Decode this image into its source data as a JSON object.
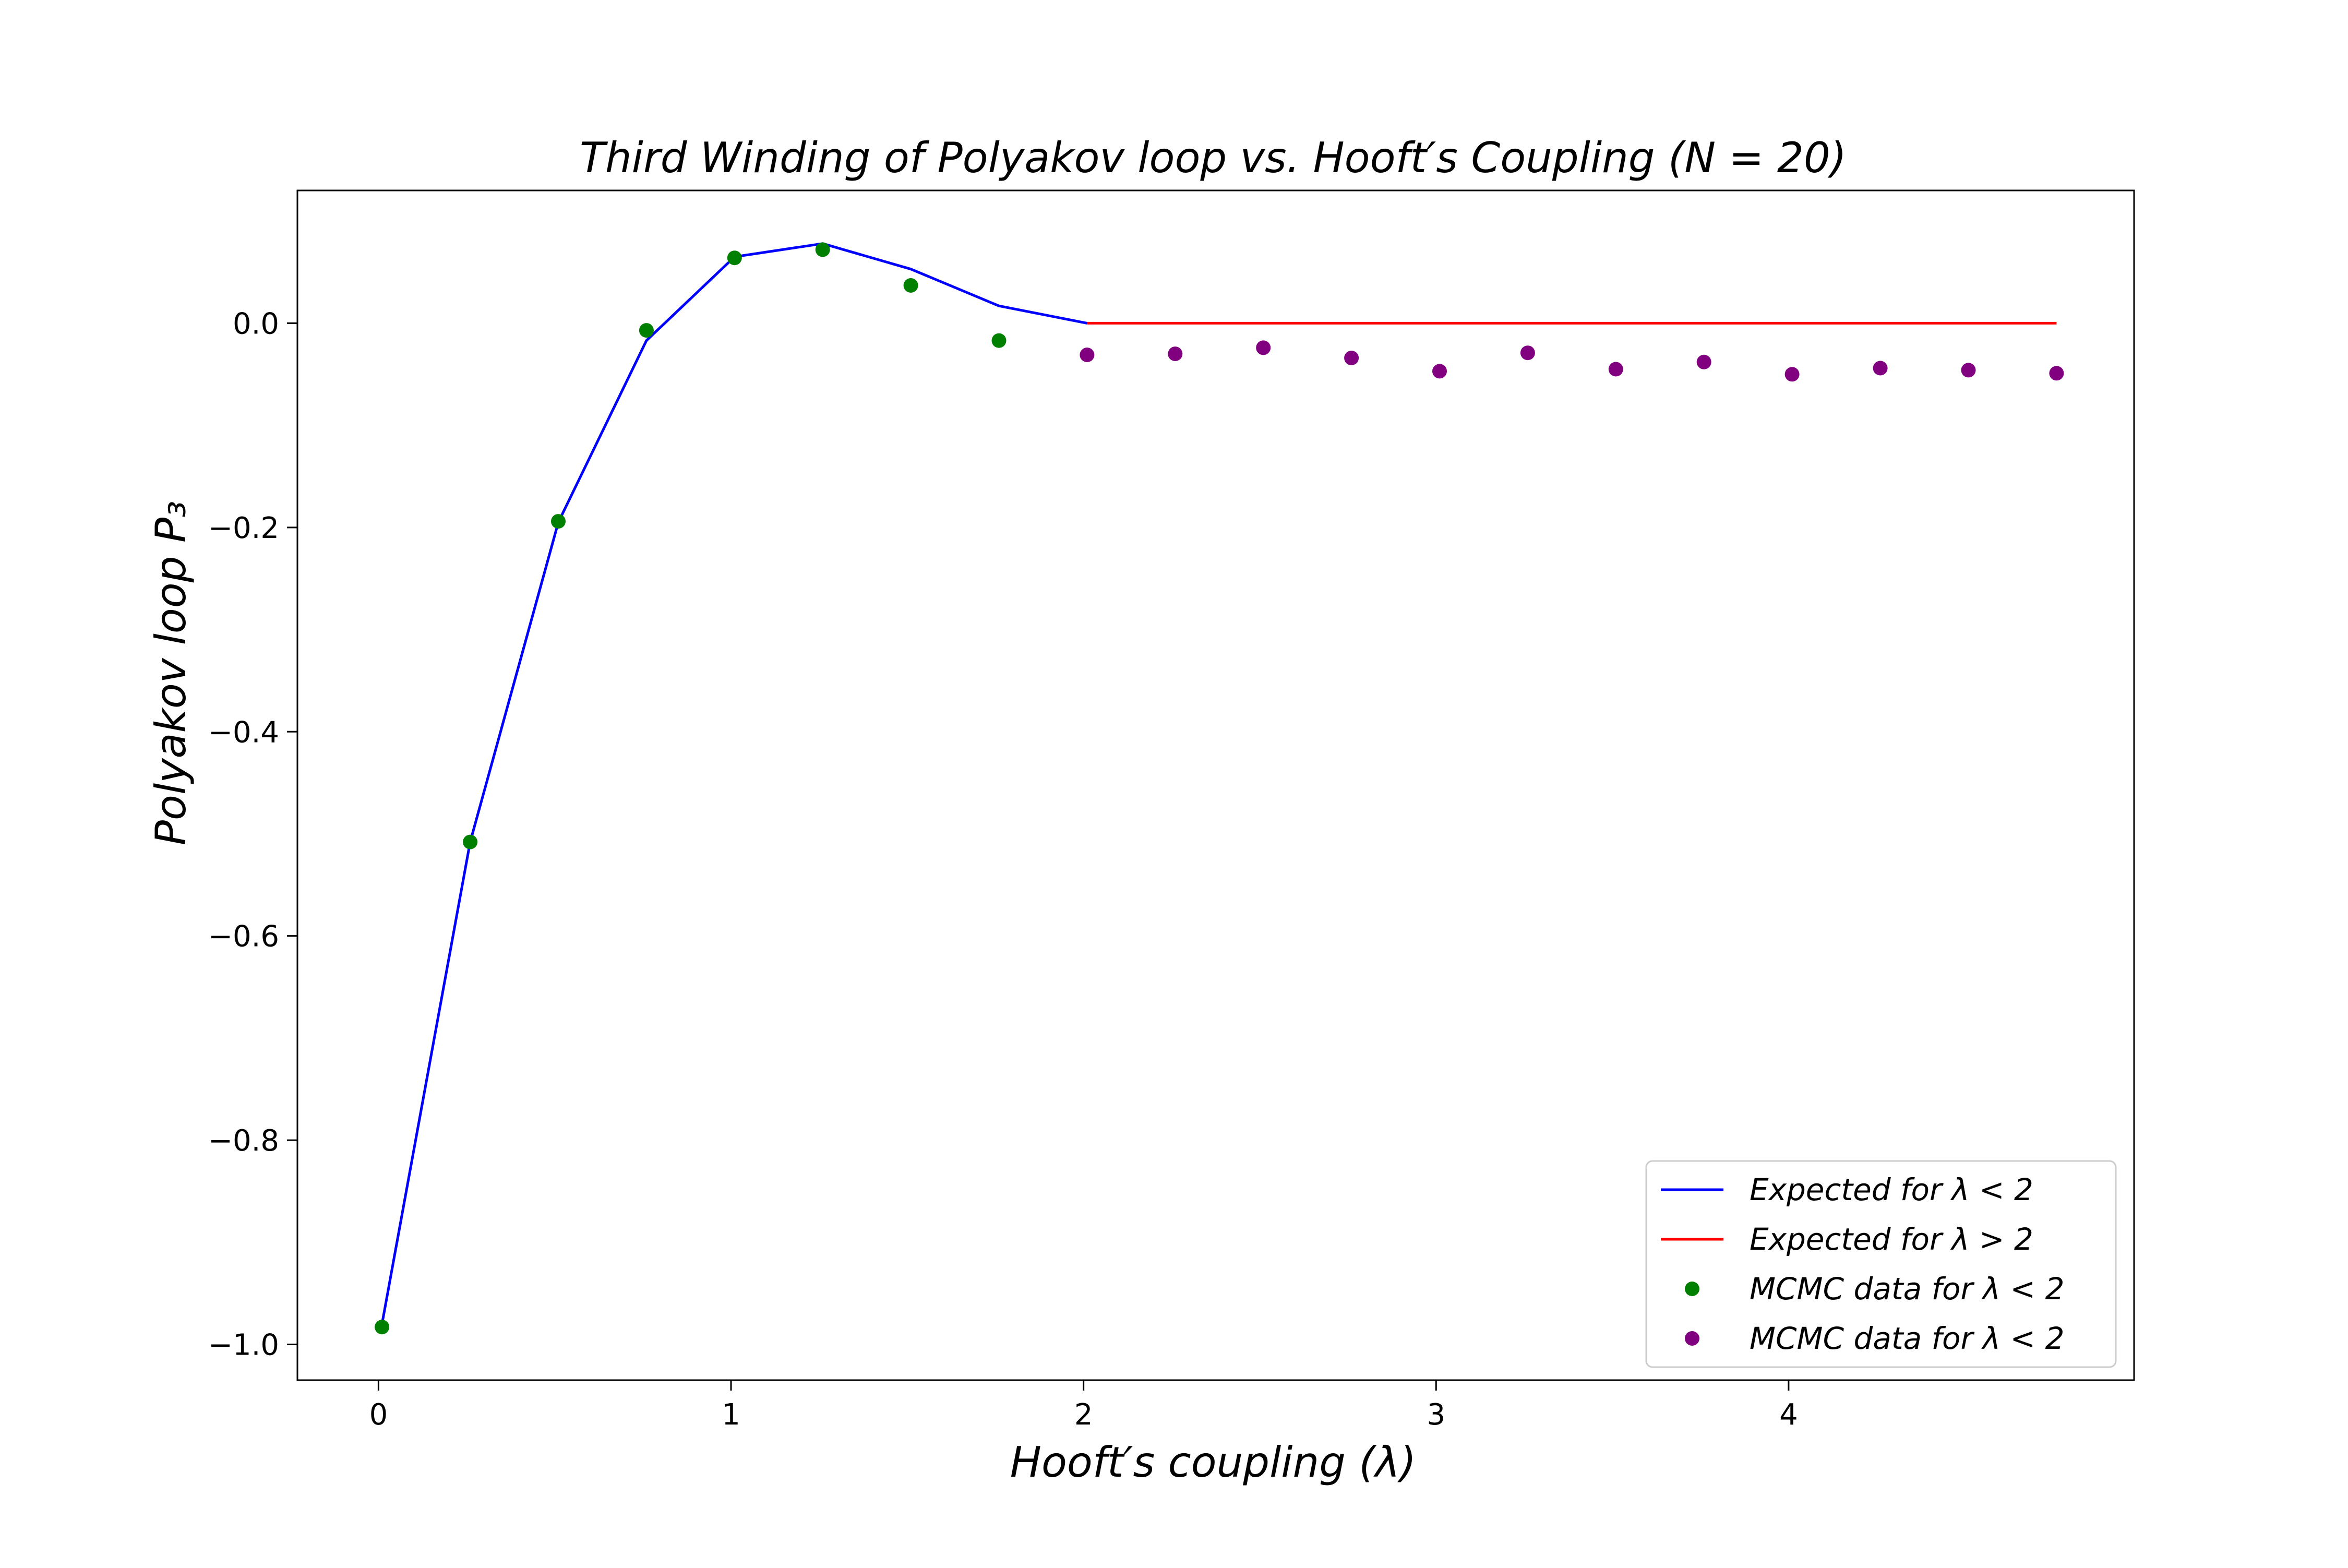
{
  "chart_data": {
    "type": "line",
    "title": "Third Winding of Polyakov loop vs. Hooft′s Coupling (N = 20)",
    "xlabel": "Hooft′s coupling (λ)",
    "ylabel": "Polyakov loop P₃",
    "xlim": [
      -0.23,
      4.98
    ],
    "ylim": [
      -1.035,
      0.13
    ],
    "x_ticks": [
      0,
      1,
      2,
      3,
      4
    ],
    "x_tick_labels": [
      "0",
      "1",
      "2",
      "3",
      "4"
    ],
    "y_ticks": [
      0.0,
      -0.2,
      -0.4,
      -0.6,
      -0.8,
      -1.0
    ],
    "y_tick_labels": [
      "0.0",
      "−0.2",
      "−0.4",
      "−0.6",
      "−0.8",
      "−1.0"
    ],
    "grid": false,
    "legend_position": "bottom-right",
    "series": [
      {
        "name": "Expected for λ < 2",
        "kind": "line",
        "color": "#0000ff",
        "x": [
          0.01,
          0.26,
          0.51,
          0.76,
          1.01,
          1.26,
          1.51,
          1.76,
          2.01
        ],
        "y": [
          -0.98,
          -0.508,
          -0.195,
          -0.017,
          0.065,
          0.078,
          0.053,
          0.017,
          0.0
        ]
      },
      {
        "name": "Expected for λ > 2",
        "kind": "line",
        "color": "#ff0000",
        "x": [
          2.01,
          4.76
        ],
        "y": [
          0.0,
          0.0
        ]
      },
      {
        "name": "MCMC data for λ < 2",
        "kind": "scatter",
        "color": "#008000",
        "x": [
          0.01,
          0.26,
          0.51,
          0.76,
          1.01,
          1.26,
          1.51,
          1.76
        ],
        "y": [
          -0.983,
          -0.508,
          -0.194,
          -0.007,
          0.064,
          0.072,
          0.037,
          -0.017
        ]
      },
      {
        "name": "MCMC data for λ < 2",
        "kind": "scatter",
        "color": "#800080",
        "x": [
          2.01,
          2.26,
          2.51,
          2.76,
          3.01,
          3.26,
          3.51,
          3.76,
          4.01,
          4.26,
          4.51,
          4.76
        ],
        "y": [
          -0.031,
          -0.03,
          -0.024,
          -0.034,
          -0.047,
          -0.029,
          -0.045,
          -0.038,
          -0.05,
          -0.044,
          -0.046,
          -0.049
        ]
      }
    ]
  }
}
